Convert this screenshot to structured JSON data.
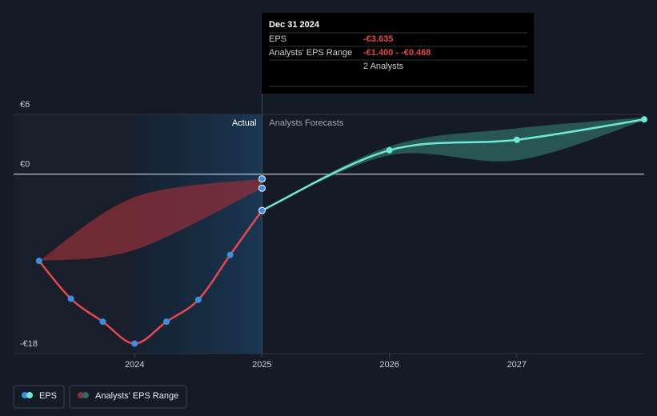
{
  "chart_data": {
    "type": "line",
    "xlim": [
      2023.05,
      2028
    ],
    "xticks": [
      2024,
      2025,
      2026,
      2027
    ],
    "ylim": [
      -18,
      6
    ],
    "yticks": [
      {
        "value": 6,
        "label": "€6"
      },
      {
        "value": 0,
        "label": "€0"
      },
      {
        "value": -18,
        "label": "-€18"
      }
    ],
    "actual_label": "Actual",
    "forecast_label": "Analysts Forecasts",
    "series": [
      {
        "name": "EPS",
        "color": "#e5484d",
        "point_color": "#3b8fe0",
        "x": [
          2023.25,
          2023.5,
          2023.75,
          2024,
          2024.25,
          2024.5,
          2024.75,
          2025
        ],
        "values": [
          -8.7,
          -12.5,
          -14.8,
          -17.0,
          -14.8,
          -12.6,
          -8.1,
          -3.635
        ]
      },
      {
        "color": "#6ee7d6",
        "x": [
          2025,
          2026,
          2027,
          2028
        ],
        "values": [
          -3.635,
          2.4,
          3.45,
          5.5
        ]
      }
    ],
    "bands": [
      {
        "name": "Analysts' EPS Range",
        "color": "#8e2f38",
        "x": [
          2023.25,
          2024,
          2025
        ],
        "low": [
          -8.7,
          -7.6,
          -1.4
        ],
        "high": [
          -8.7,
          -2.3,
          -0.468
        ]
      },
      {
        "color": "#2f6b66",
        "x": [
          2025,
          2026,
          2027,
          2028
        ],
        "low": [
          -3.635,
          1.9,
          1.4,
          5.4
        ],
        "high": [
          -3.635,
          2.8,
          4.6,
          5.7
        ]
      }
    ],
    "tooltip": {
      "date": "Dec 31 2024",
      "eps_label": "EPS",
      "eps_value": "-€3.635",
      "range_label": "Analysts' EPS Range",
      "range_low": "-€1.400",
      "range_sep": " - ",
      "range_high": "-€0.468",
      "analysts": "2 Analysts"
    }
  }
}
